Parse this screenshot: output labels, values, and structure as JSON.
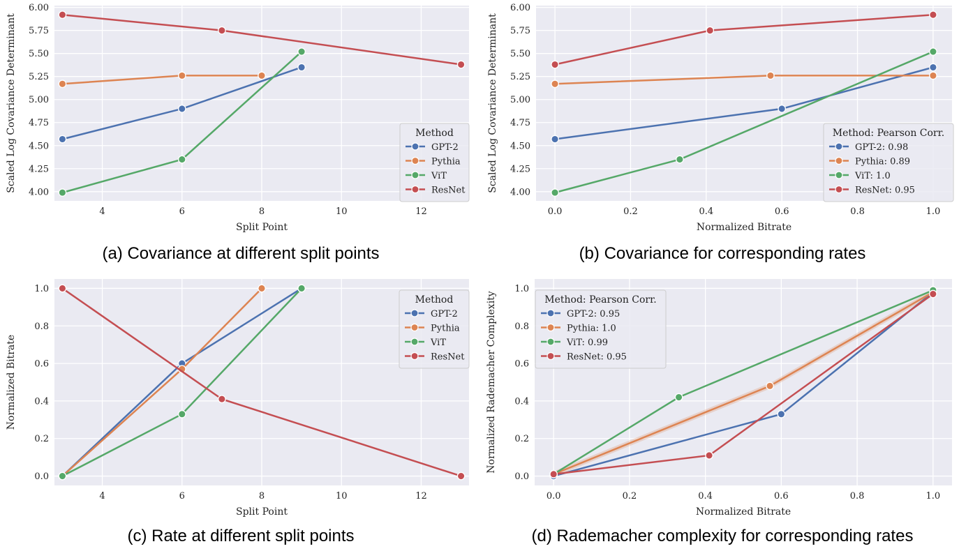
{
  "captions": [
    "(a) Covariance at different split points",
    "(b) Covariance for corresponding rates",
    "(c) Rate at different split points",
    "(d) Rademacher complexity for corresponding rates"
  ],
  "chart_data": [
    {
      "type": "line",
      "title": "",
      "xlabel": "Split Point",
      "ylabel": "Scaled Log Covariance Determinant",
      "xlim": [
        2.8,
        13.2
      ],
      "ylim": [
        3.9,
        6.02
      ],
      "xticks": [
        4,
        6,
        8,
        10,
        12
      ],
      "xtick_labels": [
        "4",
        "6",
        "8",
        "10",
        "12"
      ],
      "yticks": [
        4.0,
        4.25,
        4.5,
        4.75,
        5.0,
        5.25,
        5.5,
        5.75,
        6.0
      ],
      "ytick_labels": [
        "4.00",
        "4.25",
        "4.50",
        "4.75",
        "5.00",
        "5.25",
        "5.50",
        "5.75",
        "6.00"
      ],
      "grid": true,
      "legend": {
        "title": "Method",
        "placement": "center-right"
      },
      "series": [
        {
          "name": "GPT-2",
          "color": "#4c72b0",
          "x": [
            3,
            6,
            9
          ],
          "y": [
            4.57,
            4.9,
            5.35
          ]
        },
        {
          "name": "Pythia",
          "color": "#dd8452",
          "x": [
            3,
            6,
            8
          ],
          "y": [
            5.17,
            5.26,
            5.26
          ]
        },
        {
          "name": "ViT",
          "color": "#55a868",
          "x": [
            3,
            6,
            9
          ],
          "y": [
            3.99,
            4.35,
            5.52
          ]
        },
        {
          "name": "ResNet",
          "color": "#c44e52",
          "x": [
            3,
            7,
            13
          ],
          "y": [
            5.92,
            5.75,
            5.38
          ]
        }
      ]
    },
    {
      "type": "line",
      "title": "",
      "xlabel": "Normalized Bitrate",
      "ylabel": "Scaled Log Covariance Determinant",
      "xlim": [
        -0.05,
        1.05
      ],
      "ylim": [
        3.9,
        6.02
      ],
      "xticks": [
        0.0,
        0.2,
        0.4,
        0.6,
        0.8,
        1.0
      ],
      "xtick_labels": [
        "0.0",
        "0.2",
        "0.4",
        "0.6",
        "0.8",
        "1.0"
      ],
      "yticks": [
        4.0,
        4.25,
        4.5,
        4.75,
        5.0,
        5.25,
        5.5,
        5.75,
        6.0
      ],
      "ytick_labels": [
        "4.00",
        "4.25",
        "4.50",
        "4.75",
        "5.00",
        "5.25",
        "5.50",
        "5.75",
        "6.00"
      ],
      "grid": true,
      "legend": {
        "title": "Method: Pearson Corr.",
        "placement": "lower-right"
      },
      "series": [
        {
          "name": "GPT-2: 0.98",
          "color": "#4c72b0",
          "x": [
            0.0,
            0.6,
            1.0
          ],
          "y": [
            4.57,
            4.9,
            5.35
          ]
        },
        {
          "name": "Pythia: 0.89",
          "color": "#dd8452",
          "x": [
            0.0,
            0.57,
            1.0
          ],
          "y": [
            5.17,
            5.26,
            5.26
          ]
        },
        {
          "name": "ViT: 1.0",
          "color": "#55a868",
          "x": [
            0.0,
            0.33,
            1.0
          ],
          "y": [
            3.99,
            4.35,
            5.52
          ]
        },
        {
          "name": "ResNet: 0.95",
          "color": "#c44e52",
          "x": [
            0.0,
            0.41,
            1.0
          ],
          "y": [
            5.38,
            5.75,
            5.92
          ]
        }
      ]
    },
    {
      "type": "line",
      "title": "",
      "xlabel": "Split Point",
      "ylabel": "Normalized Bitrate",
      "xlim": [
        2.8,
        13.2
      ],
      "ylim": [
        -0.05,
        1.05
      ],
      "xticks": [
        4,
        6,
        8,
        10,
        12
      ],
      "xtick_labels": [
        "4",
        "6",
        "8",
        "10",
        "12"
      ],
      "yticks": [
        0.0,
        0.2,
        0.4,
        0.6,
        0.8,
        1.0
      ],
      "ytick_labels": [
        "0.0",
        "0.2",
        "0.4",
        "0.6",
        "0.8",
        "1.0"
      ],
      "grid": true,
      "legend": {
        "title": "Method",
        "placement": "top-right"
      },
      "series": [
        {
          "name": "GPT-2",
          "color": "#4c72b0",
          "x": [
            3,
            6,
            9
          ],
          "y": [
            0.0,
            0.6,
            1.0
          ]
        },
        {
          "name": "Pythia",
          "color": "#dd8452",
          "x": [
            3,
            6,
            8
          ],
          "y": [
            0.0,
            0.57,
            1.0
          ]
        },
        {
          "name": "ViT",
          "color": "#55a868",
          "x": [
            3,
            6,
            9
          ],
          "y": [
            0.0,
            0.33,
            1.0
          ]
        },
        {
          "name": "ResNet",
          "color": "#c44e52",
          "x": [
            3,
            7,
            13
          ],
          "y": [
            1.0,
            0.41,
            0.0
          ]
        }
      ]
    },
    {
      "type": "line",
      "title": "",
      "xlabel": "Normalized Bitrate",
      "ylabel": "Normalized Rademacher Complexity",
      "xlim": [
        -0.05,
        1.05
      ],
      "ylim": [
        -0.05,
        1.05
      ],
      "xticks": [
        0.0,
        0.2,
        0.4,
        0.6,
        0.8,
        1.0
      ],
      "xtick_labels": [
        "0.0",
        "0.2",
        "0.4",
        "0.6",
        "0.8",
        "1.0"
      ],
      "yticks": [
        0.0,
        0.2,
        0.4,
        0.6,
        0.8,
        1.0
      ],
      "ytick_labels": [
        "0.0",
        "0.2",
        "0.4",
        "0.6",
        "0.8",
        "1.0"
      ],
      "grid": true,
      "legend": {
        "title": "Method: Pearson Corr.",
        "placement": "top-left"
      },
      "series": [
        {
          "name": "GPT-2: 0.95",
          "color": "#4c72b0",
          "x": [
            0.0,
            0.6,
            1.0
          ],
          "y": [
            0.0,
            0.33,
            0.98
          ]
        },
        {
          "name": "Pythia: 1.0",
          "color": "#dd8452",
          "x": [
            0.0,
            0.57,
            1.0
          ],
          "y": [
            0.01,
            0.48,
            0.98
          ],
          "band": 0.015
        },
        {
          "name": "ViT: 0.99",
          "color": "#55a868",
          "x": [
            0.0,
            0.33,
            1.0
          ],
          "y": [
            0.01,
            0.42,
            0.99
          ]
        },
        {
          "name": "ResNet: 0.95",
          "color": "#c44e52",
          "x": [
            0.0,
            0.41,
            1.0
          ],
          "y": [
            0.01,
            0.11,
            0.97
          ]
        }
      ]
    }
  ]
}
